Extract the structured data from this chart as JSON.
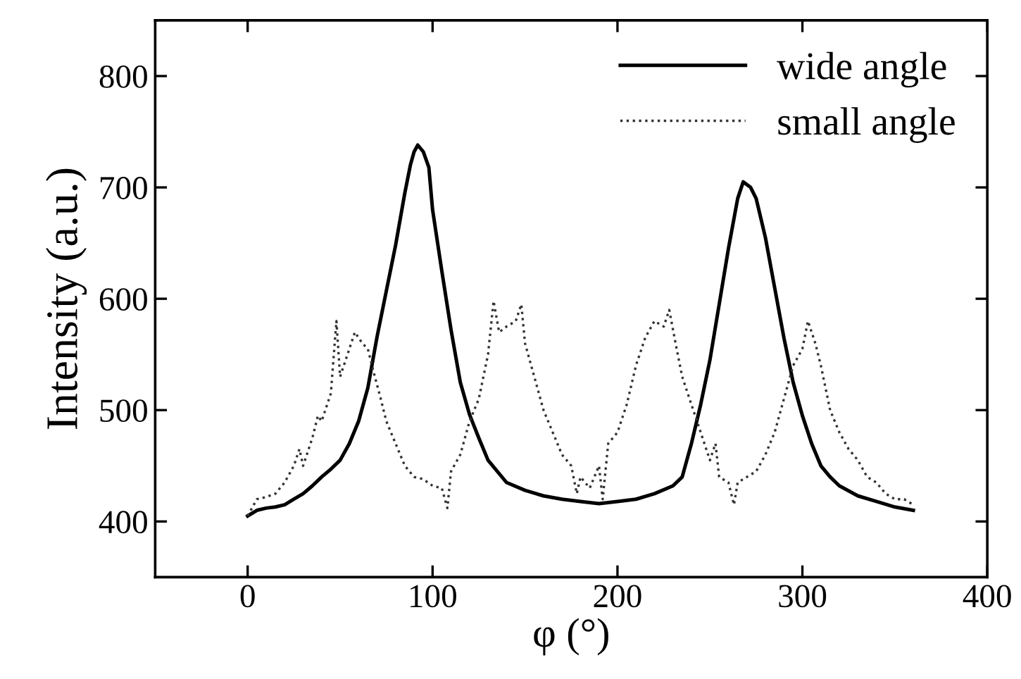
{
  "chart_data": {
    "type": "line",
    "xlabel": "φ (°)",
    "ylabel": "Intensity (a.u.)",
    "xlim": [
      -50,
      400
    ],
    "xticks": [
      0,
      100,
      200,
      300,
      400
    ],
    "ylim": [
      350,
      850
    ],
    "yticks": [
      400,
      500,
      600,
      700,
      800
    ],
    "grid": false,
    "legend": "top right",
    "marker": "none",
    "series": [
      {
        "name": "wide angle",
        "color": "#000000",
        "line_style": "solid",
        "x": [
          0,
          5,
          10,
          15,
          20,
          25,
          30,
          35,
          40,
          45,
          50,
          55,
          60,
          65,
          70,
          75,
          80,
          85,
          88,
          90,
          92,
          95,
          98,
          100,
          105,
          110,
          115,
          120,
          125,
          130,
          140,
          150,
          160,
          170,
          180,
          190,
          200,
          210,
          220,
          230,
          235,
          240,
          245,
          250,
          255,
          260,
          265,
          268,
          272,
          275,
          280,
          285,
          290,
          295,
          300,
          305,
          310,
          315,
          320,
          330,
          340,
          350,
          360
        ],
        "values": [
          405,
          410,
          412,
          413,
          415,
          420,
          425,
          432,
          440,
          447,
          455,
          470,
          490,
          520,
          566,
          607,
          648,
          695,
          720,
          732,
          738,
          732,
          718,
          680,
          625,
          572,
          525,
          496,
          475,
          455,
          435,
          428,
          423,
          420,
          418,
          416,
          418,
          420,
          425,
          432,
          440,
          470,
          505,
          545,
          595,
          645,
          690,
          705,
          700,
          690,
          655,
          610,
          565,
          525,
          495,
          470,
          450,
          440,
          432,
          423,
          418,
          413,
          410
        ]
      },
      {
        "name": "small angle",
        "color": "#333333",
        "line_style": "dotted",
        "x": [
          0,
          5,
          10,
          15,
          20,
          25,
          28,
          30,
          35,
          38,
          40,
          45,
          48,
          50,
          55,
          58,
          62,
          65,
          68,
          72,
          75,
          80,
          85,
          90,
          95,
          100,
          105,
          108,
          110,
          115,
          120,
          125,
          130,
          133,
          136,
          140,
          145,
          148,
          150,
          155,
          160,
          165,
          170,
          175,
          178,
          180,
          185,
          190,
          192,
          195,
          200,
          205,
          210,
          215,
          220,
          225,
          228,
          232,
          235,
          240,
          245,
          250,
          253,
          255,
          260,
          263,
          265,
          270,
          275,
          280,
          285,
          290,
          295,
          300,
          303,
          307,
          310,
          315,
          320,
          325,
          330,
          335,
          340,
          345,
          350,
          355,
          360
        ],
        "values": [
          405,
          420,
          422,
          425,
          435,
          450,
          465,
          450,
          475,
          495,
          490,
          515,
          580,
          530,
          555,
          570,
          560,
          555,
          535,
          510,
          490,
          470,
          450,
          440,
          438,
          432,
          430,
          412,
          445,
          460,
          490,
          510,
          550,
          598,
          570,
          575,
          580,
          595,
          560,
          530,
          500,
          480,
          460,
          450,
          425,
          440,
          430,
          450,
          420,
          470,
          480,
          505,
          540,
          565,
          580,
          575,
          590,
          555,
          530,
          505,
          480,
          455,
          470,
          440,
          435,
          415,
          435,
          440,
          445,
          460,
          480,
          510,
          540,
          555,
          580,
          560,
          540,
          500,
          480,
          465,
          455,
          440,
          435,
          425,
          420,
          420,
          415
        ]
      }
    ]
  }
}
